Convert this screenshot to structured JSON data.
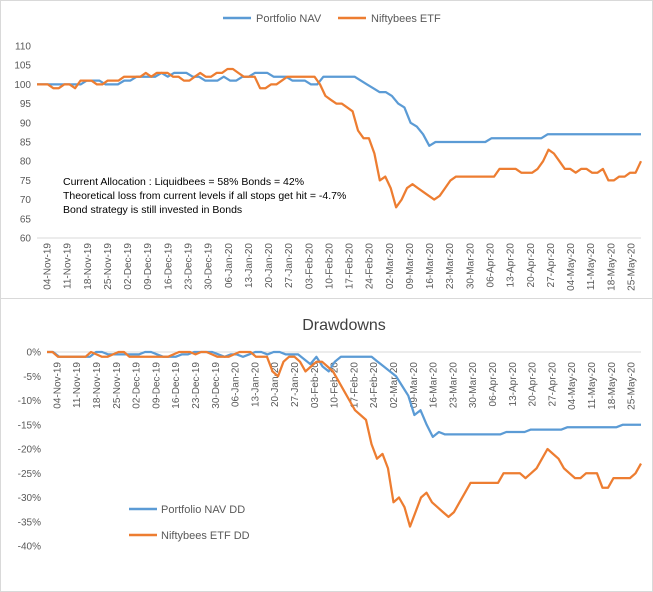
{
  "colors": {
    "portfolio": "#5B9BD5",
    "niftybees": "#ED7D31",
    "axis": "#d9d9d9",
    "text": "#595959"
  },
  "x_tick_labels": [
    "04-Nov-19",
    "11-Nov-19",
    "18-Nov-19",
    "25-Nov-19",
    "02-Dec-19",
    "09-Dec-19",
    "16-Dec-19",
    "23-Dec-19",
    "30-Dec-19",
    "06-Jan-20",
    "13-Jan-20",
    "20-Jan-20",
    "27-Jan-20",
    "03-Feb-20",
    "10-Feb-20",
    "17-Feb-20",
    "24-Feb-20",
    "02-Mar-20",
    "09-Mar-20",
    "16-Mar-20",
    "23-Mar-20",
    "30-Mar-20",
    "06-Apr-20",
    "13-Apr-20",
    "20-Apr-20",
    "27-Apr-20",
    "04-May-20",
    "11-May-20",
    "18-May-20",
    "25-May-20"
  ],
  "chart_data": [
    {
      "type": "line",
      "title": "",
      "ylim": [
        60,
        110
      ],
      "y_ticks": [
        "60",
        "65",
        "70",
        "75",
        "80",
        "85",
        "90",
        "95",
        "100",
        "105",
        "110"
      ],
      "legend_position": "top",
      "annotations": [
        "Current Allocation : Liquidbees = 58% Bonds = 42%",
        "Theoretical loss from current levels if all stops get hit = -4.7%",
        "Bond strategy is still invested in Bonds"
      ],
      "series": [
        {
          "name": "Portfolio NAV",
          "values": [
            100,
            100,
            100,
            100,
            100,
            100,
            100,
            100,
            101,
            101,
            101,
            100,
            100,
            100,
            101,
            101,
            102,
            102,
            102,
            102,
            103,
            102,
            103,
            103,
            103,
            102,
            102,
            101,
            101,
            101,
            102,
            101,
            101,
            102,
            102,
            103,
            103,
            103,
            102,
            102,
            102,
            101,
            101,
            101,
            100,
            100,
            102,
            102,
            102,
            102,
            102,
            102,
            101,
            100,
            99,
            98,
            98,
            97,
            95,
            94,
            90,
            89,
            87,
            84,
            85,
            85,
            85,
            85,
            85,
            85,
            85,
            85,
            85,
            86,
            86,
            86,
            86,
            86,
            86,
            86,
            86,
            86,
            87,
            87,
            87,
            87,
            87,
            87,
            87,
            87,
            87,
            87,
            87,
            87,
            87,
            87,
            87,
            87
          ]
        },
        {
          "name": "Niftybees ETF",
          "values": [
            100,
            100,
            100,
            99,
            99,
            100,
            100,
            99,
            101,
            101,
            101,
            100,
            100,
            101,
            101,
            101,
            102,
            102,
            102,
            102,
            103,
            102,
            103,
            103,
            103,
            102,
            102,
            101,
            101,
            102,
            103,
            102,
            102,
            103,
            103,
            104,
            104,
            103,
            102,
            102,
            102,
            99,
            99,
            100,
            100,
            101,
            102,
            102,
            102,
            102,
            102,
            102,
            100,
            97,
            96,
            95,
            95,
            94,
            93,
            88,
            86,
            86,
            82,
            75,
            76,
            73,
            68,
            70,
            73,
            74,
            73,
            72,
            71,
            70,
            71,
            73,
            75,
            76,
            76,
            76,
            76,
            76,
            76,
            76,
            76,
            78,
            78,
            78,
            78,
            77,
            77,
            77,
            78,
            80,
            83,
            82,
            80,
            78,
            78,
            77,
            78,
            78,
            77,
            77,
            78,
            75,
            75,
            76,
            76,
            77,
            77,
            80
          ]
        }
      ]
    },
    {
      "type": "line",
      "title": "Drawdowns",
      "ylim": [
        -40,
        0
      ],
      "y_ticks": [
        "-40%",
        "-35%",
        "-30%",
        "-25%",
        "-20%",
        "-15%",
        "-10%",
        "-5%",
        "0%"
      ],
      "legend_position": "bottom-left",
      "series": [
        {
          "name": "Portfolio NAV DD",
          "values": [
            0,
            0,
            -1,
            -1,
            -1,
            -1,
            -1,
            -1,
            0,
            0,
            -0.5,
            -0.5,
            -0.5,
            -0.5,
            -0.5,
            -0.5,
            0,
            0,
            -0.5,
            -1,
            -1,
            -1,
            -0.5,
            -0.5,
            0,
            0,
            0,
            0,
            -0.5,
            -1,
            -0.5,
            -0.5,
            -1,
            -0.5,
            0,
            0,
            -0.5,
            0,
            0,
            -0.5,
            -0.5,
            -0.5,
            -1.5,
            -2.5,
            -1,
            -3,
            -4,
            -2,
            -1,
            -1,
            -1,
            -1,
            -1,
            -1,
            -2,
            -3,
            -4,
            -5,
            -7,
            -9,
            -13,
            -12,
            -15,
            -17.5,
            -16.5,
            -17,
            -17,
            -17,
            -17,
            -17,
            -17,
            -17,
            -17,
            -17,
            -17,
            -16.5,
            -16.5,
            -16.5,
            -16.5,
            -16,
            -16,
            -16,
            -16,
            -16,
            -16,
            -15.5,
            -15.5,
            -15.5,
            -15.5,
            -15.5,
            -15.5,
            -15.5,
            -15.5,
            -15.5,
            -15,
            -15,
            -15,
            -15
          ]
        },
        {
          "name": "Niftybees ETF DD",
          "values": [
            0,
            0,
            -1,
            -1,
            -1,
            -1,
            -1,
            -1,
            0,
            -0.5,
            -1,
            -1,
            -0.5,
            0,
            0,
            -1,
            -1,
            -1,
            -1,
            -1,
            -1,
            -1,
            -1,
            -0.5,
            0,
            0,
            0,
            -0.5,
            0,
            0,
            -0.5,
            -1,
            -1,
            -1,
            -0.5,
            0,
            0,
            0,
            -1,
            -1,
            -1,
            -4,
            -5,
            -2,
            -1,
            -1,
            -2,
            -4,
            -3,
            -2,
            -2,
            -3,
            -4,
            -6,
            -8,
            -10,
            -12,
            -13,
            -14,
            -19,
            -22,
            -21,
            -24,
            -31,
            -30,
            -32,
            -36,
            -33,
            -30,
            -29,
            -31,
            -32,
            -33,
            -34,
            -33,
            -31,
            -29,
            -27,
            -27,
            -27,
            -27,
            -27,
            -27,
            -25,
            -25,
            -25,
            -25,
            -26,
            -25,
            -24,
            -22,
            -20,
            -21,
            -22,
            -24,
            -25,
            -26,
            -26,
            -25,
            -25,
            -25,
            -28,
            -28,
            -26,
            -26,
            -26,
            -26,
            -25,
            -23
          ]
        }
      ]
    }
  ]
}
